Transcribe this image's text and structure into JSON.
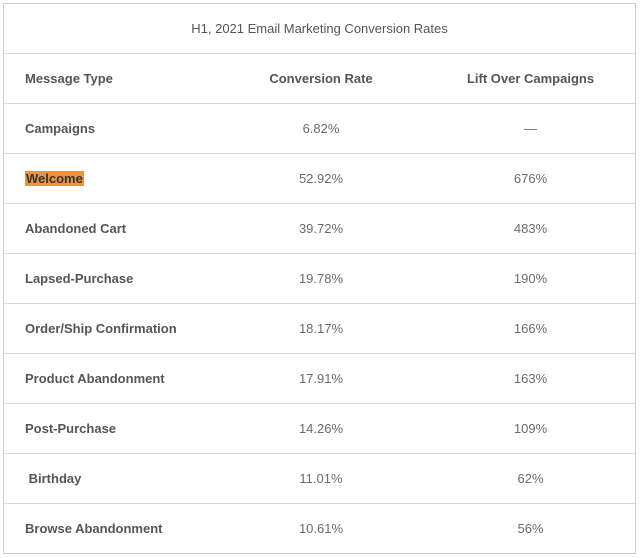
{
  "table": {
    "title": "H1, 2021 Email Marketing Conversion Rates",
    "header": [
      "Message Type",
      "Conversion Rate",
      "Lift Over Campaigns"
    ],
    "rows": [
      [
        "Campaigns",
        "6.82%",
        "—"
      ],
      [
        "Welcome",
        "52.92%",
        "676%"
      ],
      [
        "Abandoned Cart",
        "39.72%",
        "483%"
      ],
      [
        "Lapsed-Purchase",
        "19.78%",
        "190%"
      ],
      [
        "Order/Ship Confirmation",
        "18.17%",
        "166%"
      ],
      [
        "Product Abandonment",
        "17.91%",
        "163%"
      ],
      [
        "Post-Purchase",
        "14.26%",
        "109%"
      ],
      [
        " Birthday",
        "11.01%",
        "62%"
      ],
      [
        "Browse Abandonment",
        "10.61%",
        "56%"
      ]
    ]
  }
}
